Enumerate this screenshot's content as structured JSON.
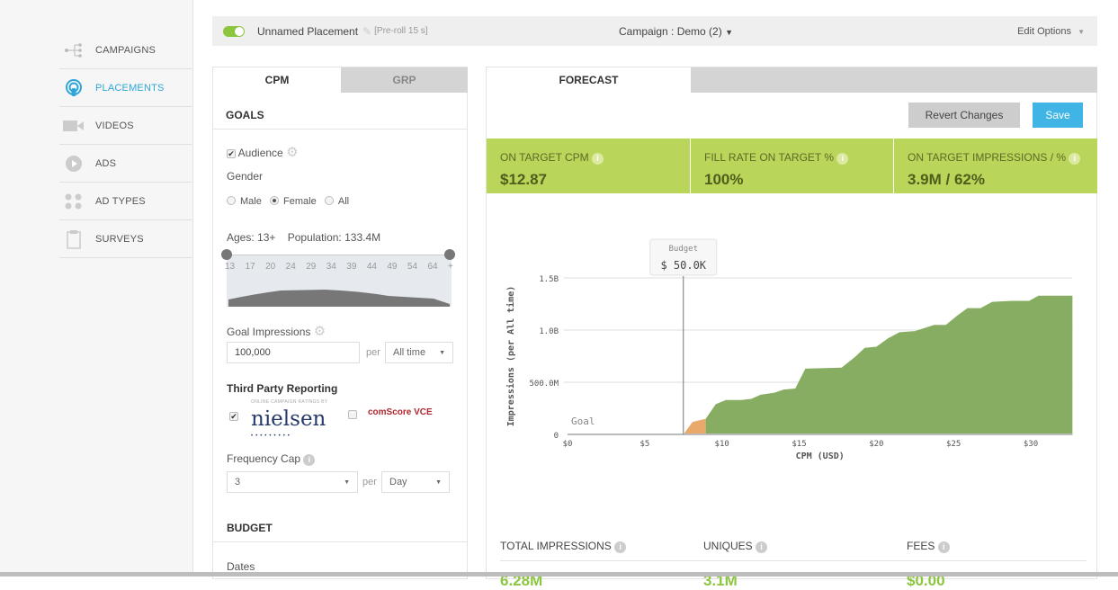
{
  "sidebar": {
    "items": [
      {
        "label": "CAMPAIGNS",
        "icon": "hierarchy-icon"
      },
      {
        "label": "PLACEMENTS",
        "icon": "broadcast-icon",
        "active": true
      },
      {
        "label": "VIDEOS",
        "icon": "video-camera-icon"
      },
      {
        "label": "ADS",
        "icon": "play-icon"
      },
      {
        "label": "AD TYPES",
        "icon": "grid-dots-icon"
      },
      {
        "label": "SURVEYS",
        "icon": "clipboard-icon"
      }
    ]
  },
  "topbar": {
    "placement_name": "Unnamed Placement",
    "placement_type": "[Pre-roll 15 s]",
    "campaign": "Campaign : Demo (2)",
    "edit_options": "Edit Options"
  },
  "left": {
    "tabs": [
      "CPM",
      "GRP"
    ],
    "goals_title": "GOALS",
    "audience_label": "Audience",
    "gender_label": "Gender",
    "gender_options": [
      "Male",
      "Female",
      "All"
    ],
    "gender_selected": "Female",
    "ages_label": "Ages: 13+",
    "population_label": "Population: 133.4M",
    "age_ticks": [
      "13",
      "17",
      "20",
      "24",
      "29",
      "34",
      "39",
      "44",
      "49",
      "54",
      "64",
      "+"
    ],
    "goal_impressions_label": "Goal Impressions",
    "goal_impressions_value": "100,000",
    "per": "per",
    "goal_period": "All time",
    "third_party_label": "Third Party Reporting",
    "nielsen_caption": "ONLINE CAMPAIGN RATINGS BY",
    "nielsen_logo": "nielsen",
    "comscore_logo": "comScore VCE",
    "frequency_cap_label": "Frequency Cap",
    "frequency_cap_value": "3",
    "frequency_period": "Day",
    "budget_title": "BUDGET",
    "dates_label": "Dates"
  },
  "right": {
    "tab": "FORECAST",
    "revert_label": "Revert Changes",
    "save_label": "Save",
    "metrics": [
      {
        "title": "ON TARGET CPM",
        "value": "$12.87"
      },
      {
        "title": "FILL RATE ON TARGET %",
        "value": "100%"
      },
      {
        "title": "ON TARGET IMPRESSIONS / %",
        "value": "3.9M / 62%"
      }
    ],
    "stats": [
      {
        "title": "TOTAL IMPRESSIONS",
        "value": "6.28M"
      },
      {
        "title": "UNIQUES",
        "value": "3.1M"
      },
      {
        "title": "FEES",
        "value": "$0.00"
      }
    ]
  },
  "chart_data": {
    "type": "area",
    "xlabel": "CPM (USD)",
    "ylabel": "Impressions (per All time)",
    "xlim": [
      0,
      32.7
    ],
    "ylim": [
      0,
      1.5
    ],
    "x_ticks": [
      {
        "v": 0,
        "label": "$0"
      },
      {
        "v": 5,
        "label": "$5"
      },
      {
        "v": 10,
        "label": "$10"
      },
      {
        "v": 15,
        "label": "$15"
      },
      {
        "v": 20,
        "label": "$20"
      },
      {
        "v": 25,
        "label": "$25"
      },
      {
        "v": 30,
        "label": "$30"
      }
    ],
    "y_ticks": [
      {
        "v": 0,
        "label": "0"
      },
      {
        "v": 0.5,
        "label": "500.0M"
      },
      {
        "v": 1.0,
        "label": "1.0B"
      },
      {
        "v": 1.5,
        "label": "1.5B"
      }
    ],
    "budget_marker": {
      "x": 7.5,
      "title": "Budget",
      "value": "$ 50.0K"
    },
    "goal_label": "Goal",
    "series": [
      {
        "name": "below-target",
        "color": "#e8a96a",
        "points": [
          [
            7.5,
            0
          ],
          [
            8.1,
            0.12
          ],
          [
            8.95,
            0.15
          ]
        ]
      },
      {
        "name": "on-target",
        "color": "#87ad62",
        "points": [
          [
            8.95,
            0.15
          ],
          [
            9.6,
            0.29
          ],
          [
            10.25,
            0.33
          ],
          [
            11.25,
            0.33
          ],
          [
            11.9,
            0.34
          ],
          [
            12.5,
            0.38
          ],
          [
            13.4,
            0.4
          ],
          [
            14,
            0.43
          ],
          [
            14.75,
            0.44
          ],
          [
            15.4,
            0.63
          ],
          [
            17.75,
            0.64
          ],
          [
            18.6,
            0.74
          ],
          [
            19.25,
            0.83
          ],
          [
            20,
            0.84
          ],
          [
            20.75,
            0.92
          ],
          [
            21.5,
            0.98
          ],
          [
            22.5,
            0.99
          ],
          [
            23.75,
            1.05
          ],
          [
            24.5,
            1.05
          ],
          [
            25.25,
            1.14
          ],
          [
            25.9,
            1.21
          ],
          [
            26.75,
            1.21
          ],
          [
            27.5,
            1.27
          ],
          [
            28.75,
            1.28
          ],
          [
            29.9,
            1.28
          ],
          [
            30.5,
            1.33
          ],
          [
            32.7,
            1.33
          ]
        ]
      }
    ]
  }
}
